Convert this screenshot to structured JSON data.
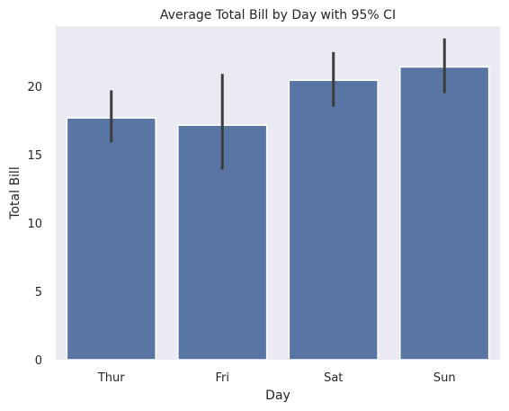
{
  "chart_data": {
    "type": "bar",
    "title": "Average Total Bill by Day with 95% CI",
    "xlabel": "Day",
    "ylabel": "Total Bill",
    "categories": [
      "Thur",
      "Fri",
      "Sat",
      "Sun"
    ],
    "values": [
      17.68,
      17.15,
      20.44,
      21.41
    ],
    "ci_low": [
      15.9,
      13.9,
      18.5,
      19.5
    ],
    "ci_high": [
      19.7,
      20.9,
      22.5,
      23.5
    ],
    "ylim": [
      0,
      24.4
    ],
    "yticks": [
      0,
      5,
      10,
      15,
      20
    ],
    "grid": false,
    "colors": {
      "bar": "#5975a4",
      "bar_edge": "#ffffff",
      "errorbar": "#3d3d3d",
      "plot_background": "#eaeaf2"
    }
  }
}
